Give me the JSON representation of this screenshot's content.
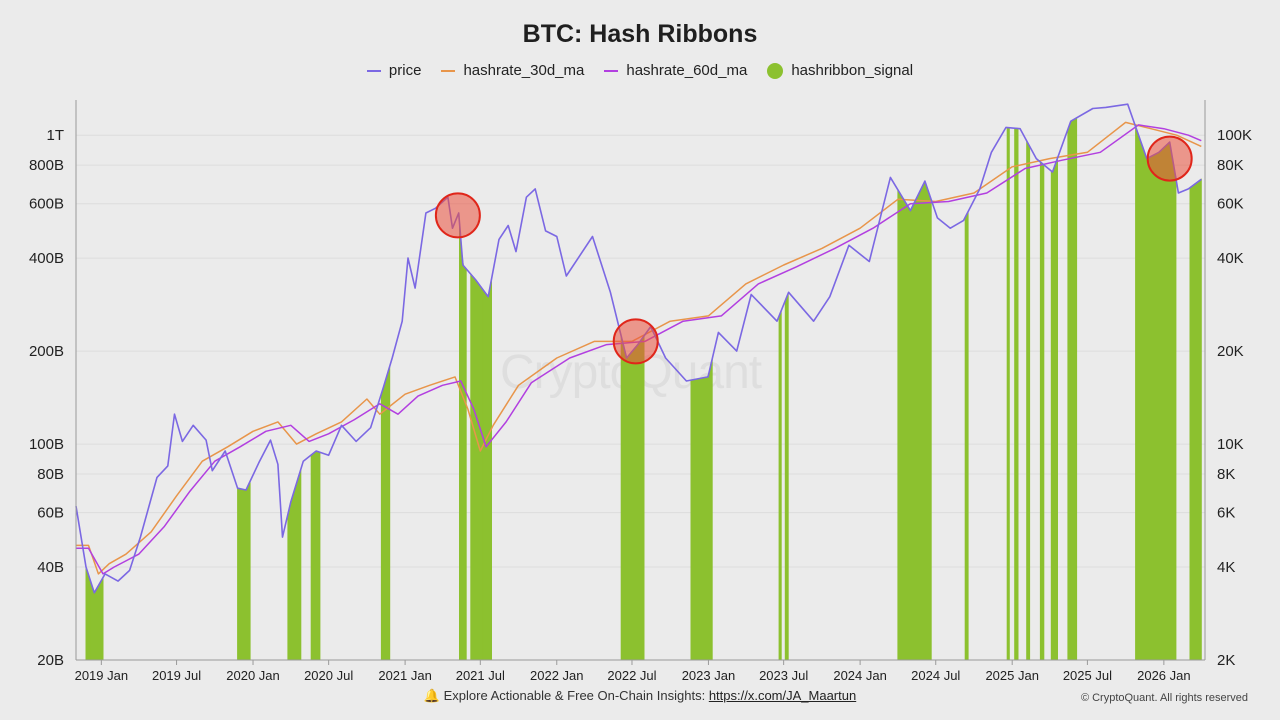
{
  "chart_data": {
    "type": "line",
    "title": "BTC: Hash Ribbons",
    "legend": {
      "placement": "top-center",
      "entries": [
        {
          "key": "price",
          "label": "price",
          "color": "#7b68e3",
          "kind": "line"
        },
        {
          "key": "hashrate_30d_ma",
          "label": "hashrate_30d_ma",
          "color": "#e8954a",
          "kind": "line"
        },
        {
          "key": "hashrate_60d_ma",
          "label": "hashrate_60d_ma",
          "color": "#b23fe0",
          "kind": "line"
        },
        {
          "key": "hashribbon_signal",
          "label": "hashribbon_signal",
          "color": "#8cc12f",
          "kind": "dot"
        }
      ]
    },
    "x_axis": {
      "range": [
        "2018-11-01",
        "2026-04-10"
      ],
      "ticks": [
        {
          "date": "2019-01-01",
          "label": "2019 Jan"
        },
        {
          "date": "2019-07-01",
          "label": "2019 Jul"
        },
        {
          "date": "2020-01-01",
          "label": "2020 Jan"
        },
        {
          "date": "2020-07-01",
          "label": "2020 Jul"
        },
        {
          "date": "2021-01-01",
          "label": "2021 Jan"
        },
        {
          "date": "2021-07-01",
          "label": "2021 Jul"
        },
        {
          "date": "2022-01-01",
          "label": "2022 Jan"
        },
        {
          "date": "2022-07-01",
          "label": "2022 Jul"
        },
        {
          "date": "2023-01-01",
          "label": "2023 Jan"
        },
        {
          "date": "2023-07-01",
          "label": "2023 Jul"
        },
        {
          "date": "2024-01-01",
          "label": "2024 Jan"
        },
        {
          "date": "2024-07-01",
          "label": "2024 Jul"
        },
        {
          "date": "2025-01-01",
          "label": "2025 Jan"
        },
        {
          "date": "2025-07-01",
          "label": "2025 Jul"
        },
        {
          "date": "2026-01-01",
          "label": "2026 Jan"
        }
      ]
    },
    "y_left": {
      "scale": "log",
      "range": [
        20000000000,
        1300000000000
      ],
      "ticks": [
        {
          "value": 20000000000,
          "label": "20B"
        },
        {
          "value": 40000000000,
          "label": "40B"
        },
        {
          "value": 60000000000,
          "label": "60B"
        },
        {
          "value": 80000000000,
          "label": "80B"
        },
        {
          "value": 100000000000,
          "label": "100B"
        },
        {
          "value": 200000000000,
          "label": "200B"
        },
        {
          "value": 400000000000,
          "label": "400B"
        },
        {
          "value": 600000000000,
          "label": "600B"
        },
        {
          "value": 800000000000,
          "label": "800B"
        },
        {
          "value": 1000000000000,
          "label": "1T"
        }
      ]
    },
    "y_right": {
      "scale": "log",
      "range": [
        2000,
        130000
      ],
      "ticks": [
        {
          "value": 2000,
          "label": "2K"
        },
        {
          "value": 4000,
          "label": "4K"
        },
        {
          "value": 6000,
          "label": "6K"
        },
        {
          "value": 8000,
          "label": "8K"
        },
        {
          "value": 10000,
          "label": "10K"
        },
        {
          "value": 20000,
          "label": "20K"
        },
        {
          "value": 40000,
          "label": "40K"
        },
        {
          "value": 60000,
          "label": "60K"
        },
        {
          "value": 80000,
          "label": "80K"
        },
        {
          "value": 100000,
          "label": "100K"
        }
      ]
    },
    "grid": "horizontal",
    "series": [
      {
        "name": "price",
        "axis": "right",
        "color": "#7b68e3",
        "points": [
          [
            "2018-11-01",
            6300
          ],
          [
            "2018-11-25",
            4000
          ],
          [
            "2018-12-15",
            3300
          ],
          [
            "2019-01-10",
            3800
          ],
          [
            "2019-02-10",
            3600
          ],
          [
            "2019-03-10",
            3900
          ],
          [
            "2019-04-05",
            5000
          ],
          [
            "2019-05-15",
            7800
          ],
          [
            "2019-06-10",
            8500
          ],
          [
            "2019-06-26",
            12500
          ],
          [
            "2019-07-15",
            10200
          ],
          [
            "2019-08-10",
            11500
          ],
          [
            "2019-09-10",
            10300
          ],
          [
            "2019-09-25",
            8200
          ],
          [
            "2019-10-26",
            9500
          ],
          [
            "2019-11-25",
            7200
          ],
          [
            "2019-12-15",
            7100
          ],
          [
            "2020-01-15",
            8700
          ],
          [
            "2020-02-12",
            10300
          ],
          [
            "2020-03-01",
            8600
          ],
          [
            "2020-03-12",
            5000
          ],
          [
            "2020-04-01",
            6500
          ],
          [
            "2020-05-01",
            8800
          ],
          [
            "2020-06-01",
            9500
          ],
          [
            "2020-07-01",
            9200
          ],
          [
            "2020-08-01",
            11500
          ],
          [
            "2020-09-05",
            10200
          ],
          [
            "2020-10-10",
            11300
          ],
          [
            "2020-11-10",
            15300
          ],
          [
            "2020-12-01",
            19000
          ],
          [
            "2020-12-25",
            25000
          ],
          [
            "2021-01-08",
            40000
          ],
          [
            "2021-01-25",
            32000
          ],
          [
            "2021-02-20",
            56000
          ],
          [
            "2021-03-15",
            58000
          ],
          [
            "2021-04-14",
            63000
          ],
          [
            "2021-04-25",
            50000
          ],
          [
            "2021-05-10",
            56000
          ],
          [
            "2021-05-20",
            38000
          ],
          [
            "2021-06-20",
            34000
          ],
          [
            "2021-07-20",
            30000
          ],
          [
            "2021-08-15",
            46000
          ],
          [
            "2021-09-06",
            51000
          ],
          [
            "2021-09-25",
            42000
          ],
          [
            "2021-10-20",
            63000
          ],
          [
            "2021-11-10",
            67000
          ],
          [
            "2021-12-05",
            49000
          ],
          [
            "2022-01-01",
            47000
          ],
          [
            "2022-01-24",
            35000
          ],
          [
            "2022-03-28",
            47000
          ],
          [
            "2022-05-10",
            31000
          ],
          [
            "2022-06-18",
            19000
          ],
          [
            "2022-07-15",
            21000
          ],
          [
            "2022-08-15",
            24000
          ],
          [
            "2022-09-20",
            19000
          ],
          [
            "2022-11-09",
            16000
          ],
          [
            "2022-12-31",
            16500
          ],
          [
            "2023-01-25",
            23000
          ],
          [
            "2023-03-10",
            20000
          ],
          [
            "2023-04-14",
            30500
          ],
          [
            "2023-06-15",
            25000
          ],
          [
            "2023-07-13",
            31000
          ],
          [
            "2023-09-11",
            25000
          ],
          [
            "2023-10-20",
            30000
          ],
          [
            "2023-12-05",
            44000
          ],
          [
            "2024-01-23",
            39000
          ],
          [
            "2024-03-14",
            73000
          ],
          [
            "2024-05-01",
            57000
          ],
          [
            "2024-06-05",
            71000
          ],
          [
            "2024-07-05",
            54000
          ],
          [
            "2024-08-05",
            50000
          ],
          [
            "2024-09-06",
            53000
          ],
          [
            "2024-10-15",
            67000
          ],
          [
            "2024-11-12",
            88000
          ],
          [
            "2024-12-17",
            106000
          ],
          [
            "2025-01-20",
            105000
          ],
          [
            "2025-02-28",
            84000
          ],
          [
            "2025-04-08",
            76000
          ],
          [
            "2025-05-22",
            111000
          ],
          [
            "2025-07-14",
            122000
          ],
          [
            "2025-08-14",
            123000
          ],
          [
            "2025-10-06",
            126000
          ],
          [
            "2025-11-21",
            84000
          ],
          [
            "2025-12-20",
            88000
          ],
          [
            "2026-01-15",
            95000
          ],
          [
            "2026-02-05",
            65000
          ],
          [
            "2026-03-01",
            67000
          ],
          [
            "2026-04-01",
            72000
          ]
        ]
      },
      {
        "name": "hashrate_30d_ma",
        "axis": "left",
        "color": "#e8954a",
        "points": [
          [
            "2018-11-01",
            47000000000
          ],
          [
            "2018-12-01",
            47000000000
          ],
          [
            "2018-12-25",
            38000000000
          ],
          [
            "2019-01-20",
            41000000000
          ],
          [
            "2019-03-01",
            44000000000
          ],
          [
            "2019-05-01",
            52000000000
          ],
          [
            "2019-07-01",
            68000000000
          ],
          [
            "2019-09-01",
            88000000000
          ],
          [
            "2019-11-01",
            98000000000
          ],
          [
            "2020-01-01",
            110000000000
          ],
          [
            "2020-03-01",
            118000000000
          ],
          [
            "2020-04-15",
            100000000000
          ],
          [
            "2020-06-01",
            108000000000
          ],
          [
            "2020-08-01",
            118000000000
          ],
          [
            "2020-10-01",
            140000000000
          ],
          [
            "2020-11-01",
            125000000000
          ],
          [
            "2021-01-01",
            145000000000
          ],
          [
            "2021-03-01",
            155000000000
          ],
          [
            "2021-05-01",
            165000000000
          ],
          [
            "2021-06-01",
            130000000000
          ],
          [
            "2021-07-01",
            95000000000
          ],
          [
            "2021-08-01",
            115000000000
          ],
          [
            "2021-10-01",
            155000000000
          ],
          [
            "2022-01-01",
            190000000000
          ],
          [
            "2022-04-01",
            215000000000
          ],
          [
            "2022-07-01",
            215000000000
          ],
          [
            "2022-10-01",
            250000000000
          ],
          [
            "2023-01-01",
            260000000000
          ],
          [
            "2023-04-01",
            330000000000
          ],
          [
            "2023-07-01",
            380000000000
          ],
          [
            "2023-10-01",
            430000000000
          ],
          [
            "2024-01-01",
            500000000000
          ],
          [
            "2024-04-01",
            620000000000
          ],
          [
            "2024-07-01",
            610000000000
          ],
          [
            "2024-10-01",
            650000000000
          ],
          [
            "2025-01-01",
            790000000000
          ],
          [
            "2025-04-01",
            840000000000
          ],
          [
            "2025-07-01",
            880000000000
          ],
          [
            "2025-10-01",
            1100000000000
          ],
          [
            "2025-12-01",
            1050000000000
          ],
          [
            "2026-02-01",
            1000000000000
          ],
          [
            "2026-04-01",
            920000000000
          ]
        ]
      },
      {
        "name": "hashrate_60d_ma",
        "axis": "left",
        "color": "#b23fe0",
        "points": [
          [
            "2018-11-01",
            46000000000
          ],
          [
            "2018-12-01",
            46000000000
          ],
          [
            "2019-01-05",
            38000000000
          ],
          [
            "2019-02-01",
            40000000000
          ],
          [
            "2019-04-01",
            44000000000
          ],
          [
            "2019-06-01",
            54000000000
          ],
          [
            "2019-08-01",
            70000000000
          ],
          [
            "2019-10-01",
            88000000000
          ],
          [
            "2019-12-01",
            98000000000
          ],
          [
            "2020-02-01",
            110000000000
          ],
          [
            "2020-04-01",
            115000000000
          ],
          [
            "2020-05-15",
            102000000000
          ],
          [
            "2020-07-01",
            108000000000
          ],
          [
            "2020-09-01",
            120000000000
          ],
          [
            "2020-11-01",
            135000000000
          ],
          [
            "2020-12-15",
            125000000000
          ],
          [
            "2021-02-01",
            143000000000
          ],
          [
            "2021-04-01",
            155000000000
          ],
          [
            "2021-05-15",
            160000000000
          ],
          [
            "2021-06-15",
            130000000000
          ],
          [
            "2021-07-15",
            98000000000
          ],
          [
            "2021-09-01",
            118000000000
          ],
          [
            "2021-11-01",
            158000000000
          ],
          [
            "2022-02-01",
            190000000000
          ],
          [
            "2022-05-01",
            210000000000
          ],
          [
            "2022-08-01",
            215000000000
          ],
          [
            "2022-11-01",
            250000000000
          ],
          [
            "2023-02-01",
            260000000000
          ],
          [
            "2023-05-01",
            330000000000
          ],
          [
            "2023-08-01",
            375000000000
          ],
          [
            "2023-11-01",
            430000000000
          ],
          [
            "2024-02-01",
            500000000000
          ],
          [
            "2024-05-01",
            600000000000
          ],
          [
            "2024-08-01",
            610000000000
          ],
          [
            "2024-11-01",
            650000000000
          ],
          [
            "2025-02-01",
            780000000000
          ],
          [
            "2025-05-01",
            830000000000
          ],
          [
            "2025-08-01",
            880000000000
          ],
          [
            "2025-11-01",
            1080000000000
          ],
          [
            "2026-01-01",
            1050000000000
          ],
          [
            "2026-03-01",
            1000000000000
          ],
          [
            "2026-04-01",
            960000000000
          ]
        ]
      }
    ],
    "signal_periods": [
      [
        "2018-11-25",
        "2018-12-05"
      ],
      [
        "2018-12-05",
        "2019-01-05"
      ],
      [
        "2019-11-25",
        "2019-12-25"
      ],
      [
        "2020-03-25",
        "2020-04-25"
      ],
      [
        "2020-05-20",
        "2020-06-10"
      ],
      [
        "2020-11-05",
        "2020-11-25"
      ],
      [
        "2021-05-12",
        "2021-05-28"
      ],
      [
        "2021-06-08",
        "2021-07-08"
      ],
      [
        "2021-07-08",
        "2021-07-28"
      ],
      [
        "2022-06-05",
        "2022-07-30"
      ],
      [
        "2022-11-20",
        "2023-01-10"
      ],
      [
        "2023-06-20",
        "2023-06-25"
      ],
      [
        "2023-07-05",
        "2023-07-12"
      ],
      [
        "2024-04-01",
        "2024-06-20"
      ],
      [
        "2024-09-10",
        "2024-09-17"
      ],
      [
        "2024-12-20",
        "2024-12-25"
      ],
      [
        "2025-01-07",
        "2025-01-15"
      ],
      [
        "2025-02-05",
        "2025-02-12"
      ],
      [
        "2025-03-10",
        "2025-03-18"
      ],
      [
        "2025-04-05",
        "2025-04-20"
      ],
      [
        "2025-05-15",
        "2025-06-05"
      ],
      [
        "2025-10-25",
        "2026-01-30"
      ],
      [
        "2026-03-05",
        "2026-04-01"
      ]
    ],
    "annotations": [
      {
        "type": "circle",
        "date": "2021-05-08",
        "value": 55000,
        "axis": "right"
      },
      {
        "type": "circle",
        "date": "2022-07-10",
        "value": 21500,
        "axis": "right"
      },
      {
        "type": "circle",
        "date": "2026-01-15",
        "value": 84000,
        "axis": "right"
      }
    ]
  },
  "watermark": "CryptoQuant",
  "footer": {
    "icon": "bell-icon",
    "text": "Explore Actionable & Free On-Chain Insights:",
    "link": "https://x.com/JA_Maartun"
  },
  "copyright": "© CryptoQuant. All rights reserved"
}
